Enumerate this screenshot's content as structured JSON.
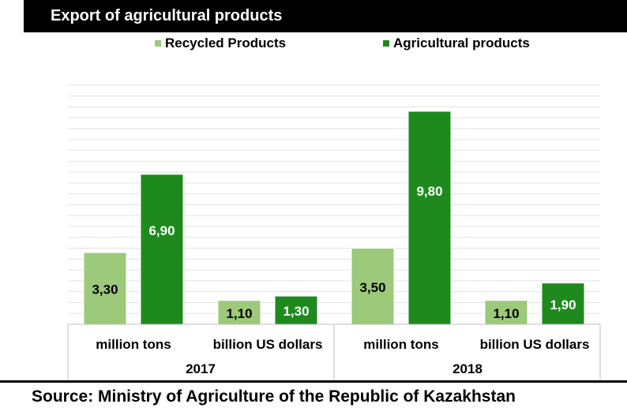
{
  "chart_data": {
    "type": "bar",
    "title": "Export of agricultural products",
    "groups": [
      {
        "year": "2017",
        "categories": [
          "million tons",
          "billion US dollars"
        ]
      },
      {
        "year": "2018",
        "categories": [
          "million tons",
          "billion US dollars"
        ]
      }
    ],
    "series": [
      {
        "name": "Recycled Products",
        "color": "#9dc97a",
        "values": [
          3.3,
          1.1,
          3.5,
          1.1
        ],
        "labels": [
          "3,30",
          "1,10",
          "3,50",
          "1,10"
        ]
      },
      {
        "name": "Agricultural products",
        "color": "#1e8a1e",
        "values": [
          6.9,
          1.3,
          9.8,
          1.9
        ],
        "labels": [
          "6,90",
          "1,30",
          "9,80",
          "1,90"
        ]
      }
    ],
    "ylim": [
      0,
      11
    ],
    "grid": true,
    "legend_position": "top"
  },
  "source": "Source: Ministry of Agriculture of the Republic of Kazakhstan"
}
